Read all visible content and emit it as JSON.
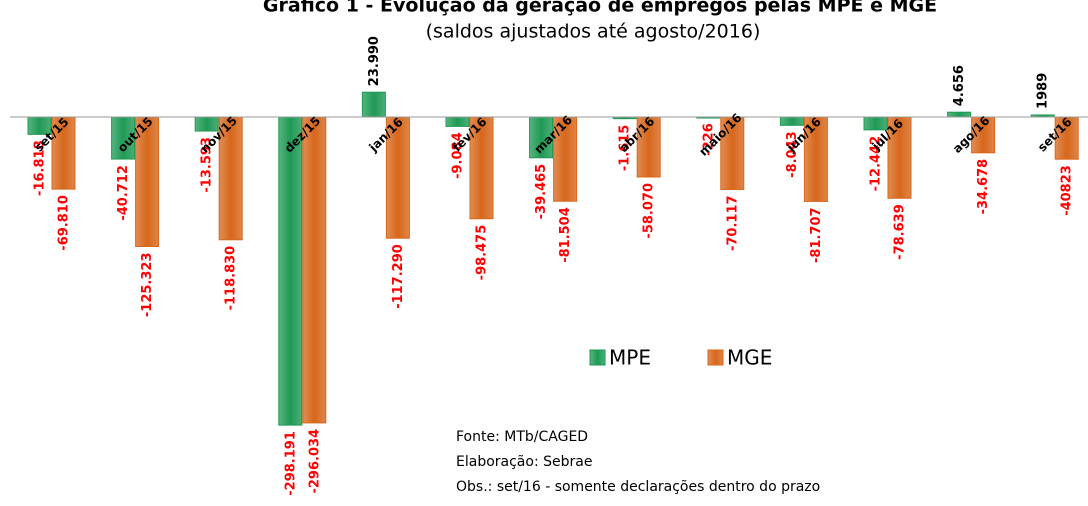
{
  "chart_data": {
    "type": "bar",
    "title": "Gráfico 1 - Evolução da geração de empregos pelas MPE e MGE",
    "subtitle": "(saldos ajustados até agosto/2016)",
    "categories": [
      "set/15",
      "out/15",
      "nov/15",
      "dez/15",
      "jan/16",
      "fev/16",
      "mar/16",
      "abr/16",
      "maio/16",
      "jun/16",
      "jul/16",
      "ago/16",
      "set/16"
    ],
    "ylim": [
      -300000,
      30000
    ],
    "legend": "center",
    "series": [
      {
        "name": "MPE",
        "color": "#1f9a55",
        "values": [
          -16818,
          -40712,
          -13593,
          -298191,
          23990,
          -9084,
          -39465,
          -1615,
          -226,
          -8043,
          -12442,
          4656,
          1989
        ],
        "value_labels": [
          "-16.818",
          "-40.712",
          "-13.593",
          "-298.191",
          "23.990",
          "-9.084",
          "-39.465",
          "-1.615",
          "-226",
          "-8.043",
          "-12.442",
          "4.656",
          "1989"
        ]
      },
      {
        "name": "MGE",
        "color": "#d7671b",
        "values": [
          -69810,
          -125323,
          -118830,
          -296034,
          -117290,
          -98475,
          -81504,
          -58070,
          -70117,
          -81707,
          -78639,
          -34678,
          -40823
        ],
        "value_labels": [
          "-69.810",
          "-125.323",
          "-118.830",
          "-296.034",
          "-117.290",
          "-98.475",
          "-81.504",
          "-58.070",
          "-70.117",
          "-81.707",
          "-78.639",
          "-34.678",
          "-40823"
        ]
      }
    ],
    "notes": [
      "Fonte: MTb/CAGED",
      "Elaboração: Sebrae",
      "Obs.: set/16 - somente declarações dentro do prazo"
    ]
  }
}
